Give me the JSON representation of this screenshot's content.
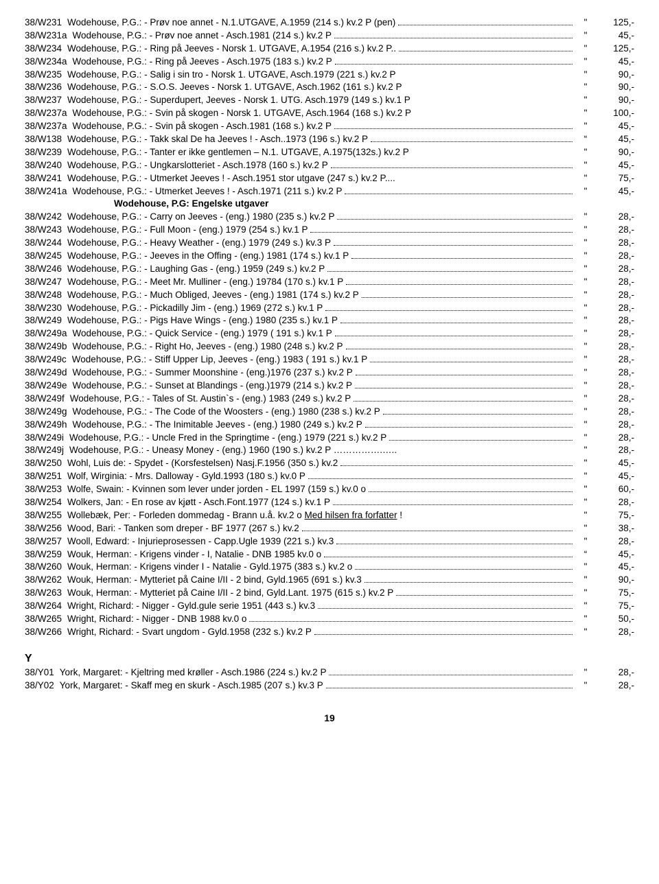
{
  "rows": [
    {
      "code": "38/W231",
      "desc": "Wodehouse, P.G.: - Prøv noe annet - N.1.UTGAVE, A.1959 (214 s.) kv.2 P (pen)",
      "q": "\"",
      "price": "125,-"
    },
    {
      "code": "38/W231a",
      "desc": "Wodehouse, P.G.: - Prøv noe annet - Asch.1981 (214 s.) kv.2 P",
      "q": "\"",
      "price": "45,-"
    },
    {
      "code": "38/W234",
      "desc": "Wodehouse, P.G.: - Ring på Jeeves - Norsk 1. UTGAVE, A.1954 (216 s.) kv.2 P..",
      "q": "\"",
      "price": "125,-"
    },
    {
      "code": "38/W234a",
      "desc": "Wodehouse, P.G.: - Ring på Jeeves - Asch.1975 (183 s.) kv.2 P",
      "q": "\"",
      "price": "45,-"
    },
    {
      "code": "38/W235",
      "desc": "Wodehouse, P.G.: - Salig i sin tro - Norsk 1. UTGAVE, Asch.1979 (221 s.) kv.2 P",
      "q": "\"",
      "price": "90,-",
      "nodots": true
    },
    {
      "code": "38/W236",
      "desc": "Wodehouse, P.G.: - S.O.S. Jeeves - Norsk 1. UTGAVE, Asch.1962 (161 s.) kv.2 P",
      "q": "\"",
      "price": "90,-",
      "nodots": true
    },
    {
      "code": "38/W237",
      "desc": "Wodehouse, P.G.: - Superdupert, Jeeves - Norsk 1. UTG. Asch.1979 (149 s.) kv.1 P",
      "q": "\"",
      "price": "90,-",
      "nodots": true
    },
    {
      "code": "38/W237a",
      "desc": "Wodehouse, P.G.: - Svin på skogen - Norsk 1. UTGAVE, Asch.1964 (168 s.) kv.2 P",
      "q": "\"",
      "price": "100,-",
      "nodots": true
    },
    {
      "code": "38/W237a",
      "desc": "Wodehouse, P.G.: - Svin på skogen - Asch.1981 (168 s.) kv.2 P",
      "q": "\"",
      "price": "45,-"
    },
    {
      "code": "38/W138",
      "desc": "Wodehouse, P.G.: - Takk skal De ha Jeeves ! - Asch..1973 (196 s.) kv.2 P",
      "q": "“",
      "price": "45,-"
    },
    {
      "code": "38/W239",
      "desc": "Wodehouse, P.G.: - Tanter er ikke gentlemen – N.1. UTGAVE, A.1975(132s.) kv.2 P",
      "q": "\"",
      "price": "90,-",
      "nodots": true
    },
    {
      "code": "38/W240",
      "desc": "Wodehouse, P.G.: - Ungkarslotteriet - Asch.1978 (160 s.) kv.2 P",
      "q": "\"",
      "price": "45,-"
    },
    {
      "code": "38/W241",
      "desc": "Wodehouse, P.G.: - Utmerket Jeeves ! - Asch.1951 stor utgave (247 s.) kv.2 P....",
      "q": "\"",
      "price": "75,-",
      "nodots": true
    },
    {
      "code": "38/W241a",
      "desc": "Wodehouse, P.G.: - Utmerket Jeeves ! - Asch.1971 (211 s.) kv.2 P",
      "q": "\"",
      "price": "45,-"
    }
  ],
  "section1": "Wodehouse, P.G: Engelske utgaver",
  "rows2": [
    {
      "code": "38/W242",
      "desc": "Wodehouse, P.G.: - Carry on Jeeves - (eng.) 1980 (235 s.) kv.2 P",
      "q": "\"",
      "price": "28,-"
    },
    {
      "code": "38/W243",
      "desc": "Wodehouse, P.G.: - Full Moon - (eng.) 1979 (254 s.) kv.1 P",
      "q": "\"",
      "price": "28,-"
    },
    {
      "code": "38/W244",
      "desc": "Wodehouse, P.G.: - Heavy Weather - (eng.) 1979 (249 s.) kv.3 P",
      "q": "\"",
      "price": "28,-"
    },
    {
      "code": "38/W245",
      "desc": "Wodehouse, P.G.: - Jeeves in the Offing - (eng.) 1981 (174 s.) kv.1 P",
      "q": "\"",
      "price": "28,-"
    },
    {
      "code": "38/W246",
      "desc": "Wodehouse, P.G.: - Laughing Gas - (eng.) 1959 (249 s.) kv.2 P",
      "q": "\"",
      "price": "28,-"
    },
    {
      "code": "38/W247",
      "desc": "Wodehouse, P.G.: - Meet Mr. Mulliner - (eng.) 19784 (170 s.) kv.1 P",
      "q": "\"",
      "price": "28,-"
    },
    {
      "code": "38/W248",
      "desc": "Wodehouse, P.G.: - Much Obliged, Jeeves - (eng.) 1981 (174 s.) kv.2 P",
      "q": "\"",
      "price": "28,-"
    },
    {
      "code": "38/W230",
      "desc": "Wodehouse, P.G.: - Pickadilly Jim - (eng.) 1969 (272 s.) kv.1 P",
      "q": "\"",
      "price": "28,-"
    },
    {
      "code": "38/W249",
      "desc": "Wodehouse, P.G.: - Pigs Have Wings - (eng.) 1980 (235 s.) kv.1 P",
      "q": "\"",
      "price": "28,-"
    },
    {
      "code": "38/W249a",
      "desc": "Wodehouse, P.G.: - Quick Service - (eng.) 1979 ( 191 s.) kv.1 P",
      "q": "\"",
      "price": "28,-"
    },
    {
      "code": "38/W249b",
      "desc": "Wodehouse, P.G.: - Right Ho, Jeeves - (eng.) 1980 (248 s.) kv.2 P",
      "q": "\"",
      "price": "28,-"
    },
    {
      "code": "38/W249c",
      "desc": "Wodehouse, P.G.: - Stiff Upper Lip, Jeeves - (eng.) 1983 ( 191 s.) kv.1 P",
      "q": "\"",
      "price": "28,-"
    },
    {
      "code": "38/W249d",
      "desc": "Wodehouse, P.G.: - Summer Moonshine - (eng.)1976 (237 s.) kv.2 P",
      "q": "\"",
      "price": "28,-"
    },
    {
      "code": "38/W249e",
      "desc": "Wodehouse, P.G.: - Sunset at Blandings - (eng.)1979 (214 s.) kv.2 P",
      "q": "\"",
      "price": "28,-"
    },
    {
      "code": "38/W249f",
      "desc": "Wodehouse, P.G.: - Tales of St. Austin`s - (eng.) 1983 (249 s.) kv.2 P",
      "q": "\"",
      "price": "28,-"
    },
    {
      "code": "38/W249g",
      "desc": "Wodehouse, P.G.: - The Code of the Woosters - (eng.) 1980 (238 s.) kv.2 P",
      "q": "\"",
      "price": "28,-"
    },
    {
      "code": "38/W249h",
      "desc": "Wodehouse, P.G.: - The Inimitable Jeeves - (eng.) 1980 (249 s.) kv.2 P",
      "q": "\"",
      "price": "28,-"
    },
    {
      "code": "38/W249i",
      "desc": "Wodehouse, P.G.: - Uncle Fred in the Springtime - (eng.) 1979 (221 s.) kv.2 P",
      "q": "\"",
      "price": "28,-"
    },
    {
      "code": "38/W249j",
      "desc": "Wodehouse, P.G.: - Uneasy Money - (eng.) 1960 (190 s.) kv.2 P …………….…..",
      "q": "\"",
      "price": "28,-",
      "nodots": true
    },
    {
      "code": "38/W250",
      "desc": "Wohl, Luis de: - Spydet - (Korsfestelsen) Nasj.F.1956 (350 s.) kv.2",
      "q": "\"",
      "price": "45,-"
    },
    {
      "code": "38/W251",
      "desc": "Wolf, Wirginia: - Mrs. Dalloway - Gyld.1993 (180 s.) kv.0 P",
      "q": "\"",
      "price": "45,-"
    },
    {
      "code": "38/W253",
      "desc": "Wolfe, Swain: - Kvinnen som lever under jorden - EL 1997 (159 s.) kv.0 o",
      "q": "\"",
      "price": "60,-"
    },
    {
      "code": "38/W254",
      "desc": "Wolkers, Jan: - En rose av kjøtt - Asch.Font.1977 (124 s.) kv.1 P",
      "q": "\"",
      "price": "28,-"
    },
    {
      "code": "38/W255",
      "desc": "Wollebæk, Per: - Forleden dommedag - Brann u.å. kv.2 o <span class=\"underline\">Med hilsen fra forfatter</span>  !",
      "q": "\"",
      "price": "75,-",
      "html": true,
      "nodots": true
    },
    {
      "code": "38/W256",
      "desc": "Wood, Bari: - Tanken som dreper - BF 1977 (267 s.) kv.2",
      "q": "\"",
      "price": "38,-"
    },
    {
      "code": "38/W257",
      "desc": "Wooll, Edward: - Injurieprosessen - Capp.Ugle 1939 (221 s.) kv.3",
      "q": "\"",
      "price": "28,-"
    },
    {
      "code": "38/W259",
      "desc": "Wouk, Herman: - Krigens vinder - I, Natalie - DNB 1985 kv.0 o",
      "q": "“",
      "price": "45,-"
    },
    {
      "code": "38/W260",
      "desc": "Wouk, Herman: - Krigens vinder I - Natalie - Gyld.1975 (383 s.) kv.2 o",
      "q": "\"",
      "price": "45,-"
    },
    {
      "code": "38/W262",
      "desc": "Wouk, Herman: - Mytteriet på Caine I/II - 2 bind, Gyld.1965 (691 s.) kv.3",
      "q": "\"",
      "price": "90,-"
    },
    {
      "code": "38/W263",
      "desc": "Wouk, Herman: - Mytteriet på Caine I/II - 2 bind, Gyld.Lant. 1975 (615 s.) kv.2 P",
      "q": "\"",
      "price": "75,-"
    },
    {
      "code": "38/W264",
      "desc": "Wright, Richard: - Nigger - Gyld.gule serie 1951 (443 s.) kv.3",
      "q": "\"",
      "price": "75,-"
    },
    {
      "code": "38/W265",
      "desc": "Wright, Richard: - Nigger - DNB 1988 kv.0 o",
      "q": "\"",
      "price": "50,-"
    },
    {
      "code": "38/W266",
      "desc": "Wright, Richard: - Svart ungdom - Gyld.1958 (232 s.) kv.2 P",
      "q": "\"",
      "price": "28,-"
    }
  ],
  "sectionY": "Y",
  "rowsY": [
    {
      "code": "38/Y01",
      "desc": "York, Margaret: - Kjeltring med krøller - Asch.1986 (224 s.) kv.2 P",
      "q": "\"",
      "price": "28,-"
    },
    {
      "code": "38/Y02",
      "desc": "York, Margaret: - Skaff meg en skurk - Asch.1985 (207 s.) kv.3 P",
      "q": "\"",
      "price": "28,-"
    }
  ],
  "pagenum": "19"
}
